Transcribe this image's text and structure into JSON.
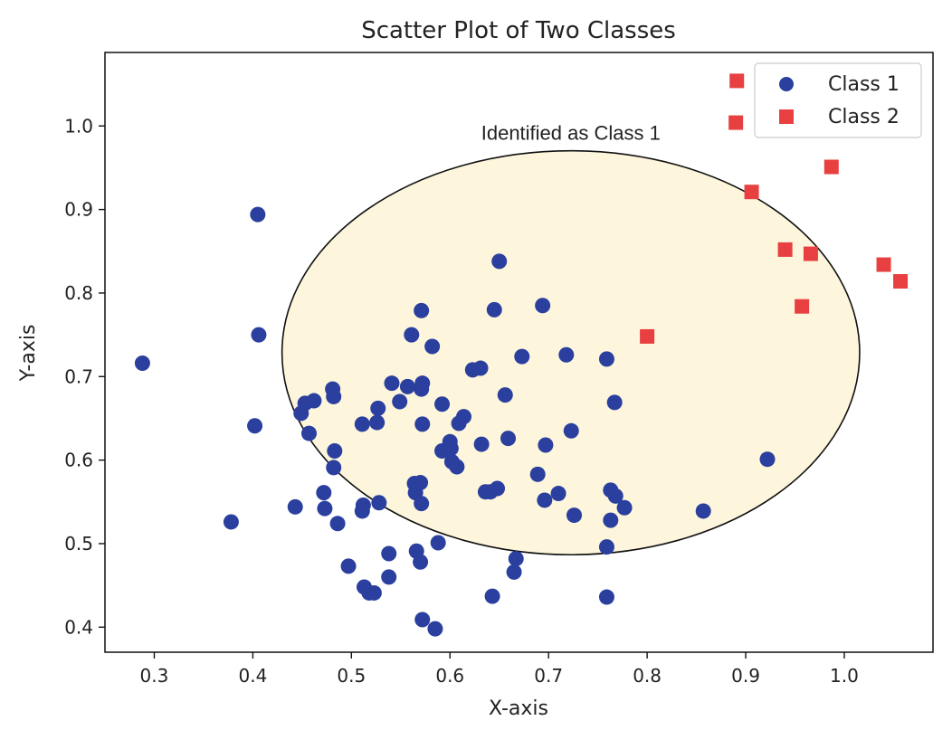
{
  "chart_data": {
    "type": "scatter",
    "title": "Scatter Plot of Two Classes",
    "xlabel": "X-axis",
    "ylabel": "Y-axis",
    "xlim": [
      0.25,
      1.09
    ],
    "ylim": [
      0.37,
      1.088
    ],
    "xticks": [
      0.3,
      0.4,
      0.5,
      0.6,
      0.7,
      0.8,
      0.9,
      1.0
    ],
    "yticks": [
      0.4,
      0.5,
      0.6,
      0.7,
      0.8,
      0.9,
      1.0
    ],
    "grid": false,
    "legend": {
      "placement": "top-right"
    },
    "annotation": {
      "text": "Identified as Class 1",
      "shape": "ellipse",
      "center": [
        0.7226,
        0.7285
      ],
      "radii": [
        0.293,
        0.2418
      ],
      "fill": "#fdf5dc",
      "stroke": "#111111"
    },
    "series": [
      {
        "name": "Class 1",
        "marker": "circle",
        "color": "#2a3f9e",
        "points": [
          [
            0.288,
            0.716
          ],
          [
            0.378,
            0.526
          ],
          [
            0.405,
            0.894
          ],
          [
            0.406,
            0.75
          ],
          [
            0.402,
            0.641
          ],
          [
            0.443,
            0.544
          ],
          [
            0.449,
            0.656
          ],
          [
            0.453,
            0.668
          ],
          [
            0.457,
            0.632
          ],
          [
            0.462,
            0.671
          ],
          [
            0.472,
            0.561
          ],
          [
            0.473,
            0.542
          ],
          [
            0.481,
            0.685
          ],
          [
            0.482,
            0.676
          ],
          [
            0.482,
            0.591
          ],
          [
            0.483,
            0.611
          ],
          [
            0.486,
            0.524
          ],
          [
            0.497,
            0.473
          ],
          [
            0.511,
            0.643
          ],
          [
            0.512,
            0.546
          ],
          [
            0.511,
            0.539
          ],
          [
            0.513,
            0.448
          ],
          [
            0.518,
            0.441
          ],
          [
            0.523,
            0.441
          ],
          [
            0.527,
            0.662
          ],
          [
            0.526,
            0.645
          ],
          [
            0.528,
            0.549
          ],
          [
            0.538,
            0.488
          ],
          [
            0.538,
            0.46
          ],
          [
            0.541,
            0.692
          ],
          [
            0.549,
            0.67
          ],
          [
            0.557,
            0.688
          ],
          [
            0.561,
            0.75
          ],
          [
            0.564,
            0.572
          ],
          [
            0.565,
            0.561
          ],
          [
            0.566,
            0.491
          ],
          [
            0.57,
            0.573
          ],
          [
            0.571,
            0.779
          ],
          [
            0.572,
            0.692
          ],
          [
            0.571,
            0.685
          ],
          [
            0.572,
            0.643
          ],
          [
            0.571,
            0.548
          ],
          [
            0.57,
            0.478
          ],
          [
            0.572,
            0.409
          ],
          [
            0.582,
            0.736
          ],
          [
            0.585,
            0.398
          ],
          [
            0.588,
            0.501
          ],
          [
            0.592,
            0.667
          ],
          [
            0.592,
            0.611
          ],
          [
            0.6,
            0.622
          ],
          [
            0.601,
            0.614
          ],
          [
            0.602,
            0.598
          ],
          [
            0.607,
            0.592
          ],
          [
            0.609,
            0.644
          ],
          [
            0.614,
            0.652
          ],
          [
            0.623,
            0.708
          ],
          [
            0.631,
            0.71
          ],
          [
            0.632,
            0.619
          ],
          [
            0.636,
            0.562
          ],
          [
            0.641,
            0.562
          ],
          [
            0.643,
            0.437
          ],
          [
            0.645,
            0.78
          ],
          [
            0.648,
            0.566
          ],
          [
            0.65,
            0.838
          ],
          [
            0.656,
            0.678
          ],
          [
            0.659,
            0.626
          ],
          [
            0.665,
            0.466
          ],
          [
            0.667,
            0.482
          ],
          [
            0.673,
            0.724
          ],
          [
            0.689,
            0.583
          ],
          [
            0.694,
            0.785
          ],
          [
            0.696,
            0.552
          ],
          [
            0.697,
            0.618
          ],
          [
            0.71,
            0.56
          ],
          [
            0.718,
            0.726
          ],
          [
            0.723,
            0.635
          ],
          [
            0.726,
            0.534
          ],
          [
            0.759,
            0.721
          ],
          [
            0.759,
            0.496
          ],
          [
            0.759,
            0.436
          ],
          [
            0.763,
            0.564
          ],
          [
            0.763,
            0.528
          ],
          [
            0.767,
            0.669
          ],
          [
            0.768,
            0.557
          ],
          [
            0.777,
            0.543
          ],
          [
            0.857,
            0.539
          ],
          [
            0.922,
            0.601
          ]
        ]
      },
      {
        "name": "Class 2",
        "marker": "square",
        "color": "#e84040",
        "points": [
          [
            0.8,
            0.748
          ],
          [
            0.891,
            1.054
          ],
          [
            0.89,
            1.004
          ],
          [
            0.906,
            0.921
          ],
          [
            0.94,
            0.852
          ],
          [
            0.957,
            0.784
          ],
          [
            0.966,
            0.847
          ],
          [
            0.987,
            0.951
          ],
          [
            1.04,
            0.834
          ],
          [
            1.057,
            0.814
          ]
        ]
      }
    ]
  }
}
